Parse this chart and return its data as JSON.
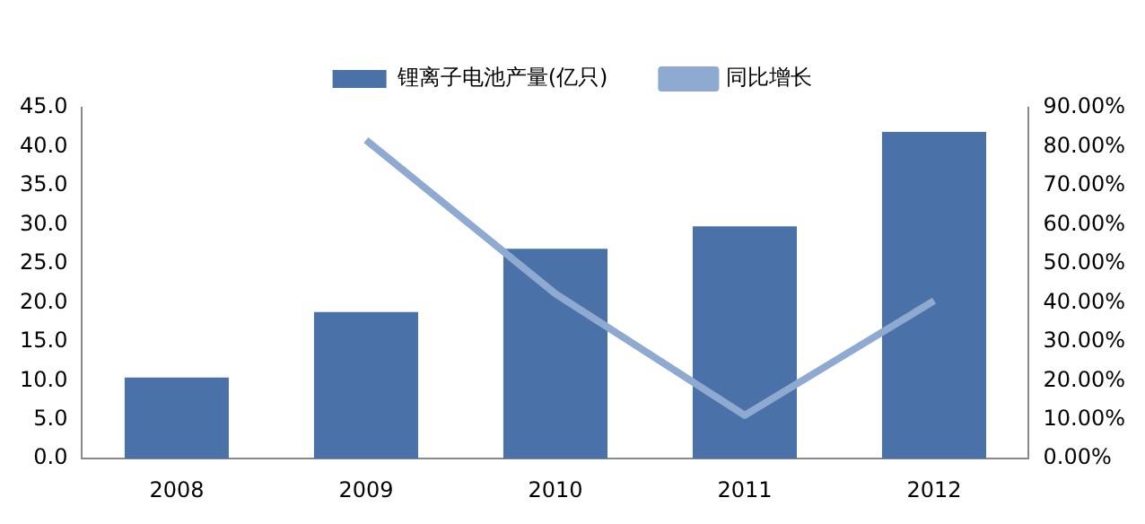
{
  "chart_data": {
    "type": "bar",
    "categories": [
      "2008",
      "2009",
      "2010",
      "2011",
      "2012"
    ],
    "series": [
      {
        "name": "锂离子电池产量(亿只)",
        "color": "#4a72a8",
        "values": [
          10.4,
          18.8,
          26.9,
          29.8,
          41.9
        ]
      },
      {
        "name": "同比增长",
        "type": "line",
        "axis": "y2",
        "color": "#8eaad0",
        "values": [
          null,
          81.7,
          42.3,
          11.1,
          40.5
        ]
      }
    ],
    "ylim": [
      0,
      45
    ],
    "yticks": [
      {
        "value": 0,
        "label": "0.0"
      },
      {
        "value": 5,
        "label": "5.0"
      },
      {
        "value": 10,
        "label": "10.0"
      },
      {
        "value": 15,
        "label": "15.0"
      },
      {
        "value": 20,
        "label": "20.0"
      },
      {
        "value": 25,
        "label": "25.0"
      },
      {
        "value": 30,
        "label": "30.0"
      },
      {
        "value": 35,
        "label": "35.0"
      },
      {
        "value": 40,
        "label": "40.0"
      },
      {
        "value": 45,
        "label": "45.0"
      }
    ],
    "y2lim": [
      0,
      90
    ],
    "y2ticks": [
      {
        "value": 0,
        "label": "0.00%"
      },
      {
        "value": 10,
        "label": "10.00%"
      },
      {
        "value": 20,
        "label": "20.00%"
      },
      {
        "value": 30,
        "label": "30.00%"
      },
      {
        "value": 40,
        "label": "40.00%"
      },
      {
        "value": 50,
        "label": "50.00%"
      },
      {
        "value": 60,
        "label": "60.00%"
      },
      {
        "value": 70,
        "label": "70.00%"
      },
      {
        "value": 80,
        "label": "80.00%"
      },
      {
        "value": 90,
        "label": "90.00%"
      }
    ],
    "grid": false,
    "legend": "top",
    "marker": "none",
    "line_style": "solid"
  }
}
